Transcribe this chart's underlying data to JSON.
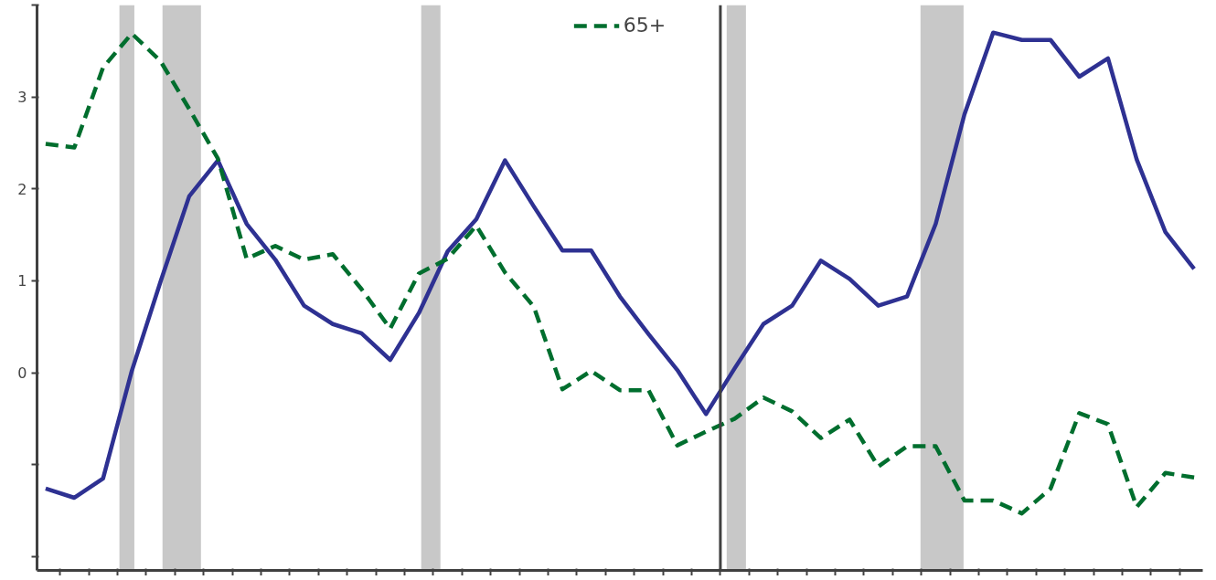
{
  "chart_data": {
    "type": "line",
    "categories": [
      null,
      null,
      null,
      null,
      null,
      null,
      null,
      null,
      null,
      null,
      null,
      null,
      null,
      null,
      null,
      null,
      null,
      null,
      null,
      null,
      null,
      null,
      null,
      null,
      null,
      null,
      null,
      null,
      null,
      null,
      null,
      null,
      null,
      null,
      null,
      null,
      null,
      null,
      null,
      null,
      null
    ],
    "series": [
      {
        "color": "#2e3192",
        "line_style": "solid",
        "values": [
          -1.26,
          -1.36,
          -1.15,
          0.02,
          0.99,
          1.92,
          2.31,
          1.62,
          1.23,
          0.73,
          0.53,
          0.43,
          0.14,
          0.65,
          1.32,
          1.67,
          2.31,
          1.81,
          1.33,
          1.33,
          0.83,
          0.42,
          0.03,
          -0.45,
          0.05,
          0.53,
          0.73,
          1.22,
          1.02,
          0.73,
          0.83,
          1.62,
          2.81,
          3.7,
          3.62,
          3.62,
          3.22,
          3.42,
          2.32,
          1.53,
          1.13
        ]
      },
      {
        "name": "65+",
        "color": "#006e2e",
        "line_style": "dashed",
        "values": [
          2.49,
          2.45,
          3.32,
          3.69,
          3.39,
          2.87,
          2.33,
          1.24,
          1.38,
          1.23,
          1.29,
          0.91,
          0.48,
          1.08,
          1.24,
          1.6,
          1.09,
          0.72,
          -0.18,
          0.02,
          -0.19,
          -0.19,
          -0.79,
          -0.64,
          -0.5,
          -0.27,
          -0.42,
          -0.71,
          -0.51,
          -1.02,
          -0.8,
          -0.8,
          -1.39,
          -1.39,
          -1.53,
          -1.26,
          -0.44,
          -0.56,
          -1.46,
          -1.09,
          -1.14
        ]
      }
    ],
    "ylim": [
      -2.15,
      4.0
    ],
    "yticks": [
      {
        "value": -2,
        "label": null
      },
      {
        "value": -1,
        "label": null
      },
      0,
      1,
      2,
      3,
      {
        "value": 4,
        "label": null
      }
    ],
    "tick_labels": "y",
    "grid": false,
    "legend": "top",
    "marker": "none"
  }
}
